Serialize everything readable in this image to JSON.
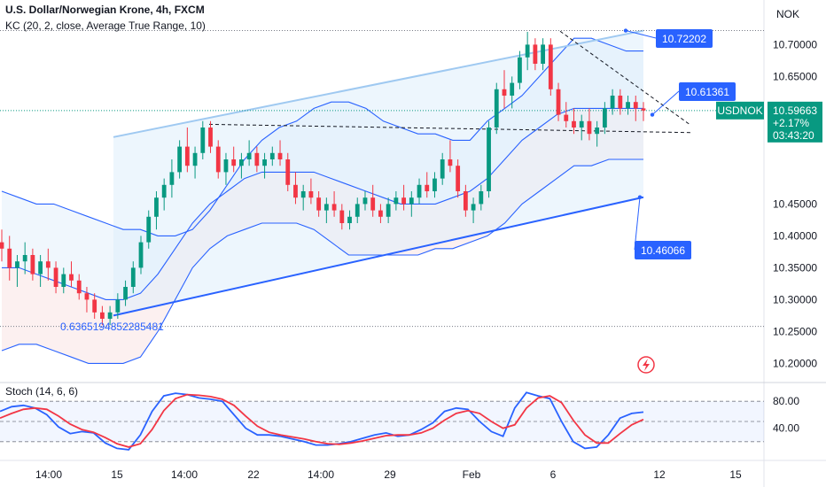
{
  "header": {
    "title": "U.S. Dollar/Norwegian Krone, 4h, FXCM",
    "indicator": "KC (20, 2, close, Average True Range, 10)",
    "currency": "NOK"
  },
  "price_badge": {
    "symbol": "USDNOK",
    "price": "10.59663",
    "change": "+2.17%",
    "countdown": "03:43:20",
    "color": "#089981"
  },
  "colors": {
    "up": "#089981",
    "down": "#f23645",
    "keltner": "#2962ff",
    "upper_fill": "#e3f0fb",
    "lower_fill": "#fbe9ea",
    "channel_line": "#9fc9f1",
    "support": "#2962ff",
    "stoch_k": "#2962ff",
    "stoch_d": "#f23645",
    "callout": "#2962ff"
  },
  "annotations": {
    "upper_target": "10.72202",
    "mid_target": "10.61361",
    "lower_target": "10.46066",
    "low_label": "0.6365194852285481"
  },
  "chart_data": [
    {
      "type": "candlestick",
      "title": "U.S. Dollar/Norwegian Krone, 4h, FXCM",
      "y_ticks": [
        10.2,
        10.25,
        10.3,
        10.35,
        10.4,
        10.45,
        10.5,
        10.55,
        10.6,
        10.65,
        10.7
      ],
      "y_tick_labels": [
        "10.20000",
        "10.25000",
        "10.30000",
        "10.35000",
        "10.40000",
        "10.45000",
        "",
        "",
        "",
        "10.65000",
        "10.70000"
      ],
      "ylim": [
        10.17,
        10.77
      ],
      "x_tick_labels": [
        "14:00",
        "15",
        "14:00",
        "22",
        "14:00",
        "29",
        "Feb",
        "6",
        "12",
        "15"
      ],
      "candles_ohlc": [
        [
          10.39,
          10.41,
          10.36,
          10.38
        ],
        [
          10.38,
          10.4,
          10.33,
          10.35
        ],
        [
          10.35,
          10.37,
          10.32,
          10.36
        ],
        [
          10.36,
          10.39,
          10.34,
          10.37
        ],
        [
          10.37,
          10.38,
          10.33,
          10.34
        ],
        [
          10.34,
          10.37,
          10.32,
          10.36
        ],
        [
          10.36,
          10.38,
          10.33,
          10.35
        ],
        [
          10.35,
          10.36,
          10.31,
          10.32
        ],
        [
          10.32,
          10.35,
          10.31,
          10.34
        ],
        [
          10.34,
          10.36,
          10.32,
          10.33
        ],
        [
          10.33,
          10.34,
          10.3,
          10.31
        ],
        [
          10.31,
          10.32,
          10.28,
          10.3
        ],
        [
          10.3,
          10.31,
          10.27,
          10.28
        ],
        [
          10.28,
          10.29,
          10.26,
          10.27
        ],
        [
          10.27,
          10.29,
          10.26,
          10.28
        ],
        [
          10.28,
          10.31,
          10.27,
          10.3
        ],
        [
          10.3,
          10.33,
          10.29,
          10.32
        ],
        [
          10.32,
          10.36,
          10.31,
          10.35
        ],
        [
          10.35,
          10.4,
          10.34,
          10.39
        ],
        [
          10.39,
          10.44,
          10.38,
          10.43
        ],
        [
          10.43,
          10.47,
          10.41,
          10.46
        ],
        [
          10.46,
          10.49,
          10.44,
          10.48
        ],
        [
          10.48,
          10.52,
          10.46,
          10.5
        ],
        [
          10.5,
          10.55,
          10.49,
          10.54
        ],
        [
          10.54,
          10.57,
          10.5,
          10.51
        ],
        [
          10.51,
          10.54,
          10.49,
          10.53
        ],
        [
          10.53,
          10.58,
          10.52,
          10.57
        ],
        [
          10.57,
          10.58,
          10.53,
          10.54
        ],
        [
          10.54,
          10.55,
          10.49,
          10.5
        ],
        [
          10.5,
          10.53,
          10.48,
          10.52
        ],
        [
          10.52,
          10.54,
          10.5,
          10.51
        ],
        [
          10.51,
          10.53,
          10.49,
          10.52
        ],
        [
          10.52,
          10.55,
          10.51,
          10.53
        ],
        [
          10.53,
          10.54,
          10.5,
          10.51
        ],
        [
          10.51,
          10.53,
          10.49,
          10.52
        ],
        [
          10.52,
          10.54,
          10.51,
          10.53
        ],
        [
          10.53,
          10.55,
          10.51,
          10.52
        ],
        [
          10.52,
          10.53,
          10.47,
          10.48
        ],
        [
          10.48,
          10.5,
          10.45,
          10.46
        ],
        [
          10.46,
          10.48,
          10.44,
          10.47
        ],
        [
          10.47,
          10.49,
          10.45,
          10.46
        ],
        [
          10.46,
          10.47,
          10.43,
          10.44
        ],
        [
          10.44,
          10.46,
          10.42,
          10.45
        ],
        [
          10.45,
          10.47,
          10.43,
          10.44
        ],
        [
          10.44,
          10.45,
          10.41,
          10.42
        ],
        [
          10.42,
          10.44,
          10.41,
          10.43
        ],
        [
          10.43,
          10.46,
          10.42,
          10.45
        ],
        [
          10.45,
          10.47,
          10.44,
          10.46
        ],
        [
          10.46,
          10.48,
          10.43,
          10.44
        ],
        [
          10.44,
          10.45,
          10.42,
          10.43
        ],
        [
          10.43,
          10.46,
          10.42,
          10.45
        ],
        [
          10.45,
          10.47,
          10.44,
          10.46
        ],
        [
          10.46,
          10.48,
          10.44,
          10.45
        ],
        [
          10.45,
          10.47,
          10.43,
          10.46
        ],
        [
          10.46,
          10.49,
          10.45,
          10.48
        ],
        [
          10.48,
          10.5,
          10.46,
          10.47
        ],
        [
          10.47,
          10.5,
          10.46,
          10.49
        ],
        [
          10.49,
          10.53,
          10.48,
          10.52
        ],
        [
          10.52,
          10.55,
          10.5,
          10.51
        ],
        [
          10.51,
          10.52,
          10.46,
          10.47
        ],
        [
          10.47,
          10.48,
          10.43,
          10.44
        ],
        [
          10.44,
          10.46,
          10.42,
          10.45
        ],
        [
          10.45,
          10.48,
          10.44,
          10.47
        ],
        [
          10.47,
          10.58,
          10.46,
          10.57
        ],
        [
          10.57,
          10.64,
          10.56,
          10.63
        ],
        [
          10.63,
          10.66,
          10.6,
          10.62
        ],
        [
          10.62,
          10.65,
          10.6,
          10.64
        ],
        [
          10.64,
          10.69,
          10.63,
          10.68
        ],
        [
          10.68,
          10.72,
          10.66,
          10.7
        ],
        [
          10.7,
          10.71,
          10.66,
          10.67
        ],
        [
          10.67,
          10.71,
          10.66,
          10.7
        ],
        [
          10.7,
          10.71,
          10.62,
          10.63
        ],
        [
          10.63,
          10.64,
          10.58,
          10.59
        ],
        [
          10.59,
          10.61,
          10.57,
          10.58
        ],
        [
          10.58,
          10.6,
          10.56,
          10.57
        ],
        [
          10.57,
          10.59,
          10.55,
          10.58
        ],
        [
          10.58,
          10.6,
          10.55,
          10.56
        ],
        [
          10.56,
          10.58,
          10.54,
          10.57
        ],
        [
          10.57,
          10.61,
          10.56,
          10.6
        ],
        [
          10.6,
          10.63,
          10.59,
          10.62
        ],
        [
          10.62,
          10.63,
          10.59,
          10.6
        ],
        [
          10.6,
          10.62,
          10.59,
          10.61
        ],
        [
          10.61,
          10.62,
          10.58,
          10.6
        ],
        [
          10.6,
          10.61,
          10.58,
          10.59663
        ]
      ],
      "keltner": {
        "upper": [
          10.47,
          10.46,
          10.45,
          10.45,
          10.44,
          10.43,
          10.42,
          10.41,
          10.41,
          10.4,
          10.4,
          10.41,
          10.44,
          10.48,
          10.52,
          10.55,
          10.57,
          10.58,
          10.6,
          10.61,
          10.61,
          10.6,
          10.58,
          10.57,
          10.56,
          10.56,
          10.55,
          10.55,
          10.58,
          10.6,
          10.62,
          10.65,
          10.68,
          10.71,
          10.71,
          10.7,
          10.69,
          10.69
        ],
        "middle": [
          10.35,
          10.35,
          10.34,
          10.33,
          10.32,
          10.31,
          10.3,
          10.3,
          10.31,
          10.34,
          10.38,
          10.42,
          10.45,
          10.47,
          10.49,
          10.5,
          10.5,
          10.5,
          10.5,
          10.49,
          10.48,
          10.47,
          10.46,
          10.45,
          10.45,
          10.45,
          10.46,
          10.47,
          10.49,
          10.52,
          10.55,
          10.57,
          10.59,
          10.6,
          10.6,
          10.6,
          10.6,
          10.6
        ],
        "lower": [
          10.22,
          10.23,
          10.23,
          10.22,
          10.21,
          10.2,
          10.2,
          10.2,
          10.21,
          10.25,
          10.3,
          10.35,
          10.38,
          10.4,
          10.41,
          10.42,
          10.42,
          10.42,
          10.41,
          10.39,
          10.37,
          10.37,
          10.37,
          10.37,
          10.37,
          10.38,
          10.38,
          10.39,
          10.4,
          10.42,
          10.45,
          10.47,
          10.49,
          10.51,
          10.51,
          10.52,
          10.52,
          10.52
        ]
      }
    },
    {
      "type": "line",
      "title": "Stoch (14, 6, 6)",
      "y_ticks": [
        80,
        40
      ],
      "y_tick_labels": [
        "80.00",
        "40.00"
      ],
      "ylim": [
        0,
        100
      ],
      "series": [
        {
          "values": [
            65,
            72,
            74,
            70,
            60,
            42,
            32,
            35,
            33,
            18,
            10,
            8,
            30,
            65,
            88,
            92,
            90,
            85,
            83,
            80,
            60,
            40,
            30,
            30,
            28,
            24,
            20,
            15,
            15,
            17,
            20,
            25,
            30,
            33,
            28,
            30,
            38,
            48,
            65,
            70,
            68,
            50,
            35,
            28,
            70,
            93,
            88,
            84,
            50,
            20,
            10,
            12,
            30,
            55,
            62,
            64
          ]
        },
        {
          "values": [
            55,
            62,
            68,
            70,
            68,
            58,
            46,
            38,
            34,
            26,
            17,
            12,
            17,
            38,
            66,
            84,
            90,
            89,
            87,
            83,
            74,
            58,
            43,
            34,
            30,
            27,
            24,
            20,
            17,
            16,
            18,
            21,
            25,
            29,
            30,
            30,
            33,
            40,
            52,
            62,
            66,
            62,
            50,
            40,
            45,
            70,
            85,
            88,
            78,
            52,
            30,
            18,
            18,
            32,
            45,
            53
          ]
        }
      ]
    }
  ]
}
